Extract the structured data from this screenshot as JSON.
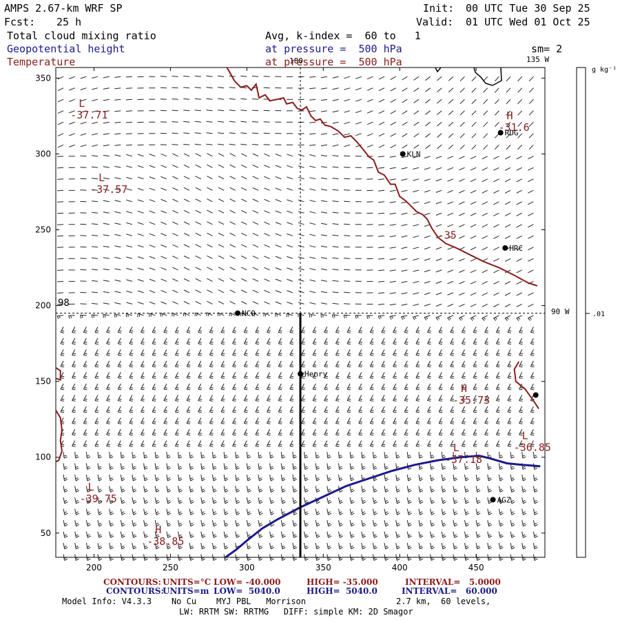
{
  "header": {
    "title": "AMPS 2.67-km WRF SP",
    "fcst_label": "Fcst:",
    "fcst_value": "25 h",
    "init_label": "Init:",
    "init_value": "00 UTC Tue 30 Sep 25",
    "valid_label": "Valid:",
    "valid_value": "01 UTC Wed 01 Oct 25"
  },
  "fields": [
    {
      "name": "Total cloud mixing ratio",
      "desc": "Avg, k-index =  60 to   1",
      "color": "#000000"
    },
    {
      "name": "Geopotential height",
      "desc": "at pressure =  500 hPa",
      "color": "#1a1a8b"
    },
    {
      "name": "Temperature",
      "desc": "at pressure =  500 hPa",
      "color": "#8b1a1a"
    }
  ],
  "smoothing": "sm= 2",
  "colorbar": {
    "units": "g kg⁻¹",
    "tick_label": ".01"
  },
  "map_labels": {
    "lon_180": "180",
    "lon_135w": "135 W",
    "lon_90w": "90 W",
    "lat_98": "98"
  },
  "stations": [
    {
      "name": "RDG",
      "x": 466,
      "y": 314
    },
    {
      "name": "KLN",
      "x": 402,
      "y": 300
    },
    {
      "name": "HRC",
      "x": 469,
      "y": 238
    },
    {
      "name": "NCO",
      "x": 294,
      "y": 195
    },
    {
      "name": "Henry",
      "x": 335,
      "y": 155
    },
    {
      "name": "AGZ",
      "x": 461,
      "y": 72
    },
    {
      "name": "",
      "x": 489,
      "y": 141
    }
  ],
  "extrema": [
    {
      "kind": "H",
      "value": "-31.6",
      "x": 470,
      "y": 323
    },
    {
      "kind": "L",
      "value": "-37.71",
      "x": 190,
      "y": 331
    },
    {
      "kind": "L",
      "value": "-37.57",
      "x": 203,
      "y": 282
    },
    {
      "kind": "H",
      "value": "-35.73",
      "x": 440,
      "y": 143
    },
    {
      "kind": "L",
      "value": "-36.85",
      "x": 480,
      "y": 112
    },
    {
      "kind": "L",
      "value": "-37.18",
      "x": 435,
      "y": 104
    },
    {
      "kind": "L",
      "value": "-39.75",
      "x": 196,
      "y": 78
    },
    {
      "kind": "H",
      "value": "-38.85",
      "x": 240,
      "y": 50
    }
  ],
  "contour_labels": [
    {
      "text": "-35",
      "x": 425,
      "y": 244
    }
  ],
  "footer": {
    "red_line": {
      "contours": "CONTOURS:",
      "units": "UNITS=°C",
      "low": "LOW= -40.000",
      "high": "HIGH= -35.000",
      "interval": "INTERVAL=   5.0000"
    },
    "blue_line": {
      "contours": "CONTOURS:",
      "units": "UNITS=m",
      "low": "LOW=  5040.0",
      "high": "HIGH=  5040.0",
      "interval": "INTERVAL=   60.000"
    },
    "model_info": "Model Info: V4.3.3    No Cu    MYJ PBL   Morrison",
    "grid_info": "2.7 km,  60 levels,",
    "physics_info": "LW: RRTM SW: RRTMG   DIFF: simple KM: 2D Smagor"
  },
  "chart_data": {
    "type": "contour",
    "title": "Total cloud mixing ratio / Geopotential height / Temperature at 500 hPa",
    "xlim": [
      175,
      495
    ],
    "ylim": [
      34,
      357
    ],
    "xticks": [
      200,
      250,
      300,
      350,
      400,
      450
    ],
    "yticks": [
      50,
      100,
      150,
      200,
      250,
      300,
      350
    ],
    "temperature_contour_neg35": [
      [
        [
          287,
          357
        ],
        [
          292,
          348
        ],
        [
          296,
          344
        ],
        [
          300,
          345
        ],
        [
          303,
          342
        ],
        [
          306,
          346
        ],
        [
          308,
          337
        ],
        [
          312,
          339
        ],
        [
          315,
          335
        ],
        [
          320,
          336
        ],
        [
          324,
          337
        ],
        [
          326,
          333
        ],
        [
          330,
          334
        ],
        [
          333,
          330
        ],
        [
          336,
          329
        ],
        [
          339,
          331
        ],
        [
          342,
          325
        ],
        [
          345,
          322
        ],
        [
          348,
          323
        ],
        [
          351,
          319
        ],
        [
          355,
          318
        ],
        [
          360,
          315
        ],
        [
          364,
          311
        ],
        [
          368,
          312
        ],
        [
          372,
          308
        ],
        [
          376,
          303
        ],
        [
          380,
          298
        ],
        [
          383,
          296
        ],
        [
          386,
          288
        ],
        [
          390,
          286
        ],
        [
          394,
          280
        ],
        [
          397,
          280
        ],
        [
          400,
          272
        ],
        [
          404,
          269
        ],
        [
          407,
          266
        ],
        [
          411,
          262
        ],
        [
          415,
          260
        ],
        [
          418,
          257
        ],
        [
          421,
          251
        ],
        [
          425,
          245
        ],
        [
          430,
          241
        ],
        [
          437,
          238
        ],
        [
          445,
          234
        ],
        [
          455,
          229
        ],
        [
          465,
          225
        ],
        [
          475,
          220
        ],
        [
          484,
          215
        ],
        [
          490,
          213
        ]
      ],
      [
        [
          175,
          131
        ],
        [
          178,
          126
        ],
        [
          179,
          118
        ],
        [
          178,
          111
        ],
        [
          179,
          104
        ],
        [
          177,
          98
        ],
        [
          175,
          97
        ]
      ],
      [
        [
          175,
          152
        ],
        [
          178,
          151
        ],
        [
          178,
          157
        ],
        [
          175,
          159
        ]
      ],
      [
        [
          478,
          163
        ],
        [
          475,
          158
        ],
        [
          476,
          150
        ],
        [
          482,
          145
        ],
        [
          487,
          138
        ],
        [
          491,
          132
        ]
      ]
    ],
    "geopotential_contour_5040": [
      [
        [
          286,
          34
        ],
        [
          293,
          39
        ],
        [
          300,
          45
        ],
        [
          310,
          53
        ],
        [
          320,
          59
        ],
        [
          335,
          67
        ],
        [
          350,
          74
        ],
        [
          365,
          81
        ],
        [
          380,
          86
        ],
        [
          395,
          91
        ],
        [
          410,
          95
        ],
        [
          425,
          98
        ],
        [
          440,
          100
        ],
        [
          452,
          101
        ],
        [
          460,
          99
        ],
        [
          470,
          96
        ],
        [
          480,
          95
        ],
        [
          492,
          94
        ]
      ]
    ],
    "cross_section_line": [
      [
        335,
        34
      ],
      [
        335,
        195
      ]
    ]
  }
}
